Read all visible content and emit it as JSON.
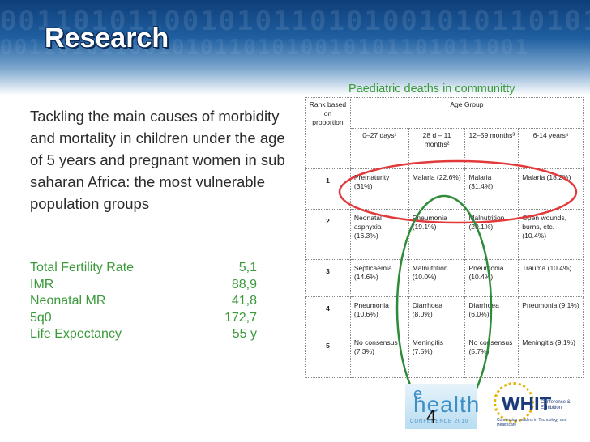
{
  "slide": {
    "title": "Research",
    "background_digits": "0011010110010101101010010101101011001",
    "intro_text": "Tackling the main causes of morbidity and mortality in children under the age of 5 years and pregnant women in sub saharan Africa: the most vulnerable population groups",
    "page_number": "4",
    "colors": {
      "header_dark": "#0e3e7a",
      "green_text": "#3a9a3a",
      "red_oval": "#e23a3a",
      "green_oval": "#2e8b3a"
    }
  },
  "stats": [
    {
      "label": "Total Fertility Rate",
      "value": "5,1"
    },
    {
      "label": "IMR",
      "value": "88,9"
    },
    {
      "label": "Neonatal MR",
      "value": "41,8"
    },
    {
      "label": "5q0",
      "value": "172,7"
    },
    {
      "label": "Life Expectancy",
      "value": "55 y"
    }
  ],
  "table": {
    "caption": "Paediatric deaths in communitty",
    "rank_header": "Rank based on proportion",
    "age_group_header": "Age Group",
    "columns": [
      "0–27 days¹",
      "28 d – 11 months²",
      "12–59 months³",
      "6-14 years⁴"
    ],
    "rows": [
      {
        "rank": "1",
        "cells": [
          "Prematurity (31%)",
          "Malaria (22.6%)",
          "Malaria (31.4%)",
          "Malaria (18.2%)"
        ]
      },
      {
        "rank": "2",
        "cells": [
          "Neonatal asphyxia (16.3%)",
          "Pneumonia (19.1%)",
          "Malnutrition (20.1%)",
          "Open wounds, burns, etc. (10.4%)"
        ]
      },
      {
        "rank": "3",
        "cells": [
          "Septicaemia (14.6%)",
          "Malnutrition (10.0%)",
          "Pneumonia (10.4%)",
          "Trauma (10.4%)"
        ]
      },
      {
        "rank": "4",
        "cells": [
          "Pneumonia (10.6%)",
          "Diarrhoea (8.0%)",
          "Diarrhoea (6.0%)",
          "Pneumonia (9.1%)"
        ]
      },
      {
        "rank": "5",
        "cells": [
          "No consensus (7.3%)",
          "Meningitis (7.5%)",
          "No consensus (5.7%)",
          "Meningitis (9.1%)"
        ]
      }
    ]
  },
  "logos": {
    "ehealth": {
      "e": "e",
      "health": "health",
      "conference": "CONFERENCE 2010"
    },
    "whit": {
      "word": "WHIT",
      "sub": "Conference & Exhibition",
      "tagline": "Connecting Leaders in Technology and Healthcare"
    }
  }
}
